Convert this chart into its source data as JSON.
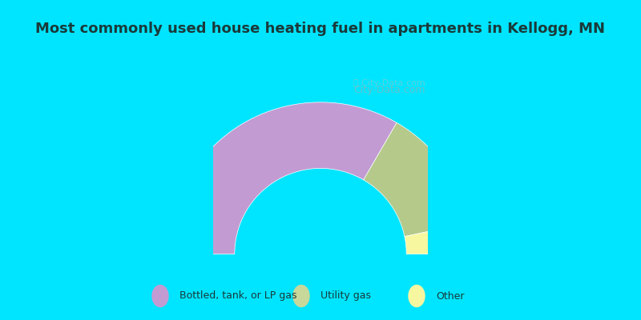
{
  "title": "Most commonly used house heating fuel in apartments in Kellogg, MN",
  "title_color": "#1a3a3a",
  "background_top": "#00e5ff",
  "background_chart": "#d4edd8",
  "slices": [
    {
      "label": "Bottled, tank, or LP gas",
      "value": 66.7,
      "color": "#c39bd3"
    },
    {
      "label": "Utility gas",
      "value": 26.7,
      "color": "#b5c98a"
    },
    {
      "label": "Other",
      "value": 6.6,
      "color": "#f7f7a0"
    }
  ],
  "legend_colors": [
    "#c39bd3",
    "#c8d89a",
    "#f7f7a0"
  ],
  "legend_labels": [
    "Bottled, tank, or LP gas",
    "Utility gas",
    "Other"
  ],
  "watermark": "City-Data.com"
}
